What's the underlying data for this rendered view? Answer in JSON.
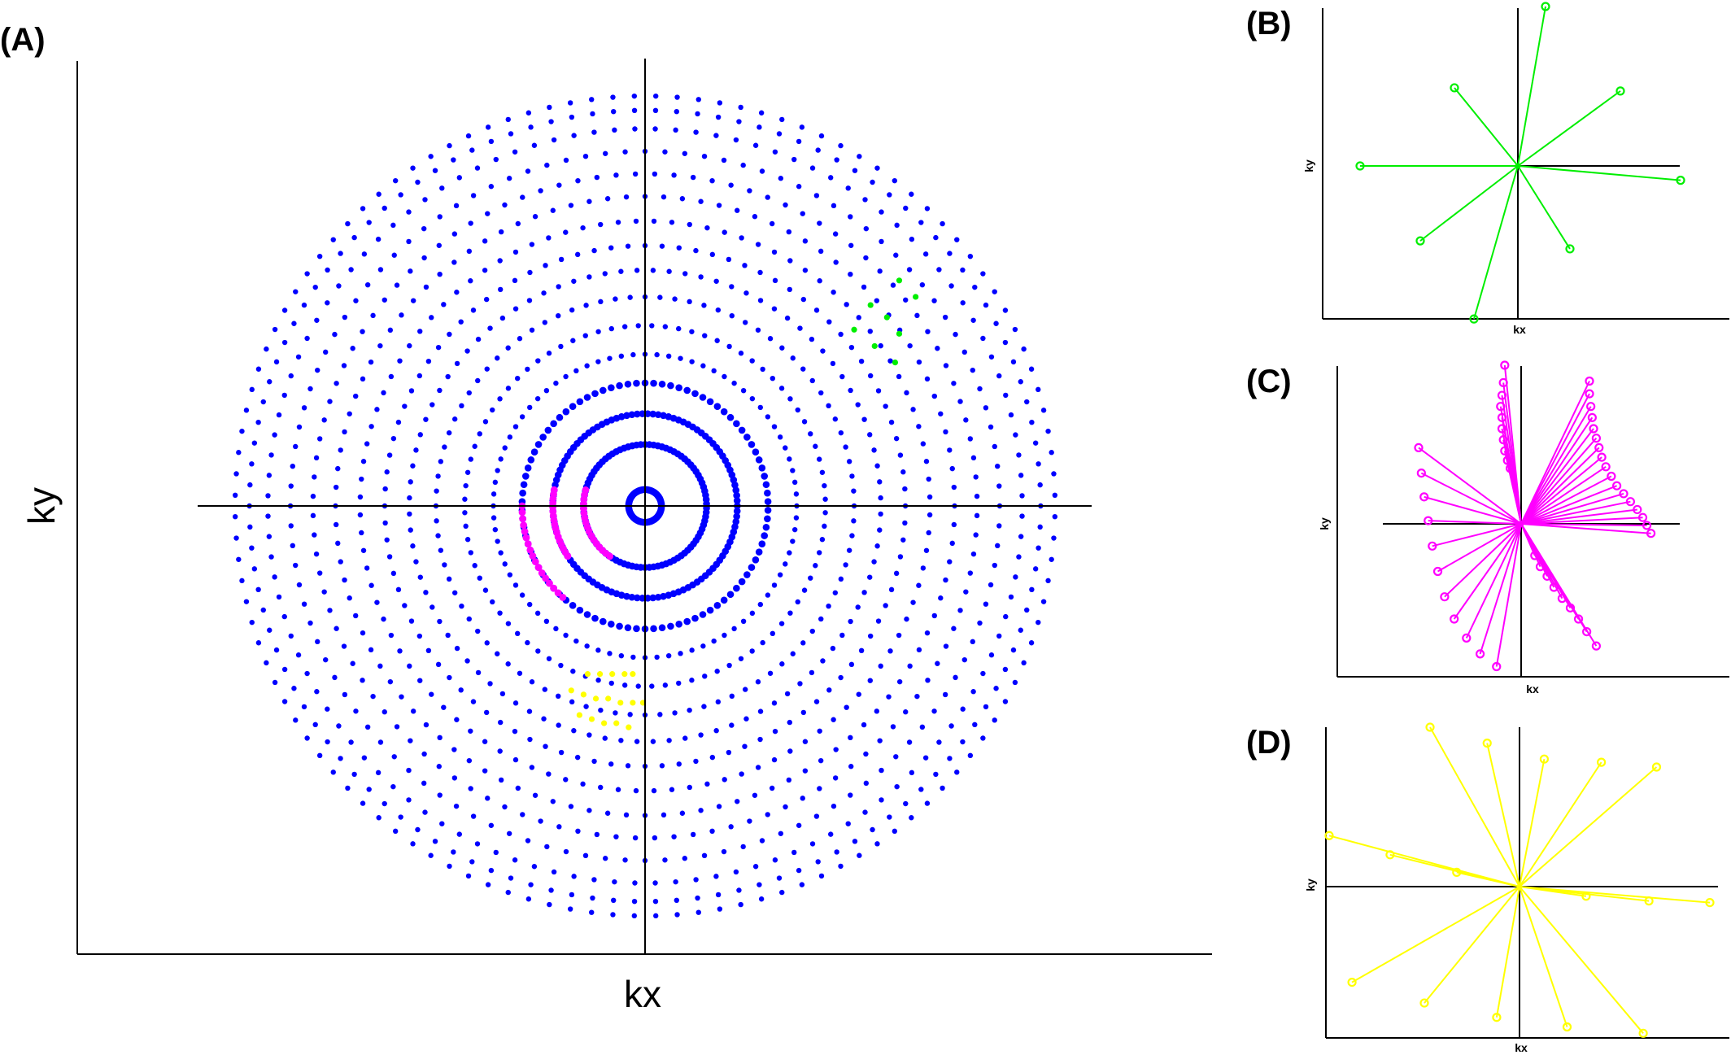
{
  "panels": {
    "a": {
      "label": "(A)",
      "xlabel": "kx",
      "ylabel": "ky"
    },
    "b": {
      "label": "(B)",
      "xlabel": "kx",
      "ylabel": "ky"
    },
    "c": {
      "label": "(C)",
      "xlabel": "kx",
      "ylabel": "ky"
    },
    "d": {
      "label": "(D)",
      "xlabel": "kx",
      "ylabel": "ky"
    }
  },
  "colors": {
    "axes": "#000000",
    "base": "#0000ff",
    "green": "#00ee00",
    "magenta": "#ff00ff",
    "yellow": "#ffff00"
  },
  "chart_data": [
    {
      "type": "scatter",
      "panel": "A",
      "title": "",
      "xlabel": "kx",
      "ylabel": "ky",
      "grid": false,
      "description_units": "normalized k-space; radius 1 = outermost ring",
      "rings": [
        {
          "radius": 0.04,
          "points": 60
        },
        {
          "radius": 0.15,
          "points": 90
        },
        {
          "radius": 0.225,
          "points": 110
        },
        {
          "radius": 0.3,
          "points": 90
        },
        {
          "radius": 0.37,
          "points": 80
        },
        {
          "radius": 0.44,
          "points": 84
        },
        {
          "radius": 0.51,
          "points": 88
        },
        {
          "radius": 0.575,
          "points": 92
        },
        {
          "radius": 0.635,
          "points": 96
        },
        {
          "radius": 0.695,
          "points": 100
        },
        {
          "radius": 0.755,
          "points": 104
        },
        {
          "radius": 0.81,
          "points": 108
        },
        {
          "radius": 0.865,
          "points": 112
        },
        {
          "radius": 0.92,
          "points": 116
        },
        {
          "radius": 0.965,
          "points": 118
        },
        {
          "radius": 1.0,
          "points": 120
        }
      ],
      "series": [
        {
          "name": "",
          "color": "#00ee00",
          "points": [
            [
              0.62,
              0.55
            ],
            [
              0.66,
              0.51
            ],
            [
              0.55,
              0.49
            ],
            [
              0.59,
              0.46
            ],
            [
              0.62,
              0.42
            ],
            [
              0.51,
              0.43
            ],
            [
              0.56,
              0.39
            ],
            [
              0.61,
              0.35
            ]
          ]
        },
        {
          "name": "",
          "color": "#ff00ff",
          "arcs": [
            {
              "radius": 0.3,
              "from_deg": 180,
              "to_deg": 228
            },
            {
              "radius": 0.225,
              "from_deg": 170,
              "to_deg": 213
            },
            {
              "radius": 0.15,
              "from_deg": 165,
              "to_deg": 235
            }
          ]
        },
        {
          "name": "",
          "color": "#ffff00",
          "points": [
            [
              -0.14,
              -0.41
            ],
            [
              -0.11,
              -0.41
            ],
            [
              -0.08,
              -0.41
            ],
            [
              -0.05,
              -0.41
            ],
            [
              -0.03,
              -0.41
            ],
            [
              -0.18,
              -0.45
            ],
            [
              -0.15,
              -0.46
            ],
            [
              -0.12,
              -0.47
            ],
            [
              -0.09,
              -0.47
            ],
            [
              -0.06,
              -0.48
            ],
            [
              -0.03,
              -0.48
            ],
            [
              -0.005,
              -0.48
            ],
            [
              -0.16,
              -0.51
            ],
            [
              -0.13,
              -0.52
            ],
            [
              -0.1,
              -0.53
            ],
            [
              -0.07,
              -0.53
            ],
            [
              -0.04,
              -0.54
            ]
          ]
        }
      ]
    },
    {
      "type": "line",
      "panel": "B",
      "title": "",
      "xlabel": "kx",
      "ylabel": "ky",
      "grid": false,
      "color": "#00ee00",
      "origin": [
        0,
        0
      ],
      "endpoints": [
        [
          0.17,
          1.0
        ],
        [
          0.63,
          0.47
        ],
        [
          -0.39,
          0.49
        ],
        [
          -0.97,
          0.0
        ],
        [
          1.0,
          -0.09
        ],
        [
          -0.6,
          -0.47
        ],
        [
          0.32,
          -0.52
        ],
        [
          -0.27,
          -0.96
        ]
      ]
    },
    {
      "type": "line",
      "panel": "C",
      "title": "",
      "xlabel": "kx",
      "ylabel": "ky",
      "grid": false,
      "color": "#ff00ff",
      "origin": [
        0,
        0
      ],
      "endpoints": [
        [
          -0.12,
          1.0
        ],
        [
          -0.13,
          0.89
        ],
        [
          -0.14,
          0.81
        ],
        [
          -0.15,
          0.74
        ],
        [
          -0.14,
          0.67
        ],
        [
          -0.14,
          0.6
        ],
        [
          -0.13,
          0.53
        ],
        [
          -0.12,
          0.46
        ],
        [
          -0.1,
          0.4
        ],
        [
          -0.08,
          0.35
        ],
        [
          0.5,
          0.9
        ],
        [
          0.5,
          0.82
        ],
        [
          0.51,
          0.74
        ],
        [
          0.52,
          0.67
        ],
        [
          0.53,
          0.6
        ],
        [
          0.55,
          0.54
        ],
        [
          0.57,
          0.48
        ],
        [
          0.59,
          0.42
        ],
        [
          0.62,
          0.36
        ],
        [
          0.66,
          0.3
        ],
        [
          0.7,
          0.24
        ],
        [
          0.75,
          0.19
        ],
        [
          0.8,
          0.14
        ],
        [
          0.85,
          0.09
        ],
        [
          0.89,
          0.04
        ],
        [
          0.92,
          -0.01
        ],
        [
          0.95,
          -0.06
        ],
        [
          -0.75,
          0.48
        ],
        [
          -0.73,
          0.32
        ],
        [
          -0.71,
          0.17
        ],
        [
          -0.68,
          0.02
        ],
        [
          -0.65,
          -0.14
        ],
        [
          -0.61,
          -0.3
        ],
        [
          -0.56,
          -0.46
        ],
        [
          -0.49,
          -0.6
        ],
        [
          -0.4,
          -0.72
        ],
        [
          -0.3,
          -0.82
        ],
        [
          -0.18,
          -0.9
        ],
        [
          0.1,
          -0.2
        ],
        [
          0.14,
          -0.27
        ],
        [
          0.19,
          -0.33
        ],
        [
          0.24,
          -0.4
        ],
        [
          0.3,
          -0.47
        ],
        [
          0.36,
          -0.53
        ],
        [
          0.42,
          -0.6
        ],
        [
          0.48,
          -0.68
        ],
        [
          0.55,
          -0.77
        ]
      ]
    },
    {
      "type": "line",
      "panel": "D",
      "title": "",
      "xlabel": "kx",
      "ylabel": "ky",
      "grid": false,
      "color": "#ffff00",
      "origin": [
        0,
        0
      ],
      "endpoints": [
        [
          -0.47,
          1.0
        ],
        [
          -0.17,
          0.9
        ],
        [
          0.13,
          0.8
        ],
        [
          0.43,
          0.78
        ],
        [
          0.72,
          0.75
        ],
        [
          -1.0,
          0.32
        ],
        [
          -0.68,
          0.2
        ],
        [
          -0.33,
          0.09
        ],
        [
          0.35,
          -0.06
        ],
        [
          0.68,
          -0.09
        ],
        [
          1.0,
          -0.1
        ],
        [
          -0.88,
          -0.6
        ],
        [
          -0.5,
          -0.73
        ],
        [
          -0.12,
          -0.82
        ],
        [
          0.25,
          -0.88
        ],
        [
          0.65,
          -0.92
        ]
      ]
    }
  ]
}
